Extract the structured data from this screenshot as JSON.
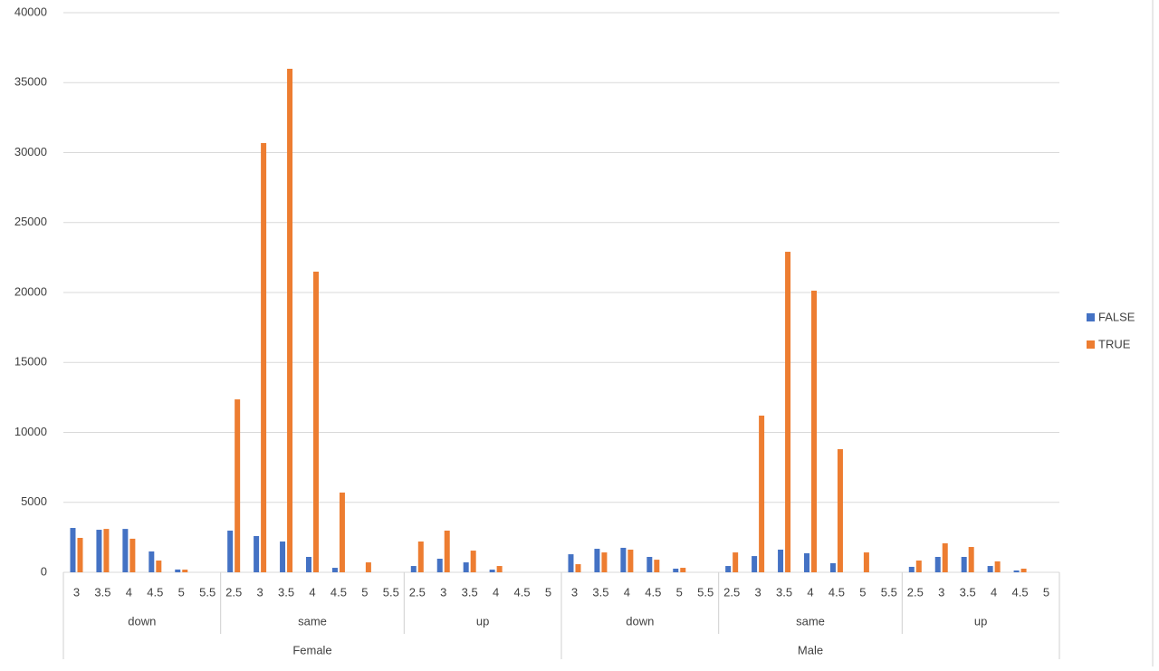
{
  "chart_data": {
    "type": "bar",
    "ylim": [
      0,
      40000
    ],
    "yticks": [
      0,
      5000,
      10000,
      15000,
      20000,
      25000,
      30000,
      35000,
      40000
    ],
    "grid": true,
    "legend": "right",
    "category_groups": [
      {
        "name": "Female",
        "subgroups": [
          {
            "name": "down",
            "categories": [
              "3",
              "3.5",
              "4",
              "4.5",
              "5",
              "5.5"
            ]
          },
          {
            "name": "same",
            "categories": [
              "2.5",
              "3",
              "3.5",
              "4",
              "4.5",
              "5",
              "5.5"
            ]
          },
          {
            "name": "up",
            "categories": [
              "2.5",
              "3",
              "3.5",
              "4",
              "4.5",
              "5"
            ]
          }
        ]
      },
      {
        "name": "Male",
        "subgroups": [
          {
            "name": "down",
            "categories": [
              "3",
              "3.5",
              "4",
              "4.5",
              "5",
              "5.5"
            ]
          },
          {
            "name": "same",
            "categories": [
              "2.5",
              "3",
              "3.5",
              "4",
              "4.5",
              "5",
              "5.5"
            ]
          },
          {
            "name": "up",
            "categories": [
              "2.5",
              "3",
              "3.5",
              "4",
              "4.5",
              "5"
            ]
          }
        ]
      }
    ],
    "series": [
      {
        "name": "FALSE",
        "color": "#4472c4",
        "values": [
          3170,
          3040,
          3100,
          1490,
          200,
          0,
          2980,
          2590,
          2200,
          1100,
          320,
          0,
          0,
          450,
          970,
          710,
          190,
          0,
          0,
          1290,
          1680,
          1750,
          1100,
          260,
          0,
          450,
          1160,
          1620,
          1360,
          650,
          0,
          0,
          390,
          1100,
          1100,
          450,
          130,
          0
        ]
      },
      {
        "name": "TRUE",
        "color": "#ed7d31",
        "values": [
          2460,
          3100,
          2400,
          840,
          190,
          0,
          12360,
          30680,
          35990,
          21490,
          5700,
          710,
          0,
          2200,
          2980,
          1550,
          450,
          0,
          0,
          580,
          1420,
          1620,
          900,
          320,
          0,
          1420,
          11200,
          22910,
          20130,
          8800,
          1420,
          0,
          840,
          2070,
          1810,
          780,
          260,
          0
        ]
      }
    ]
  }
}
